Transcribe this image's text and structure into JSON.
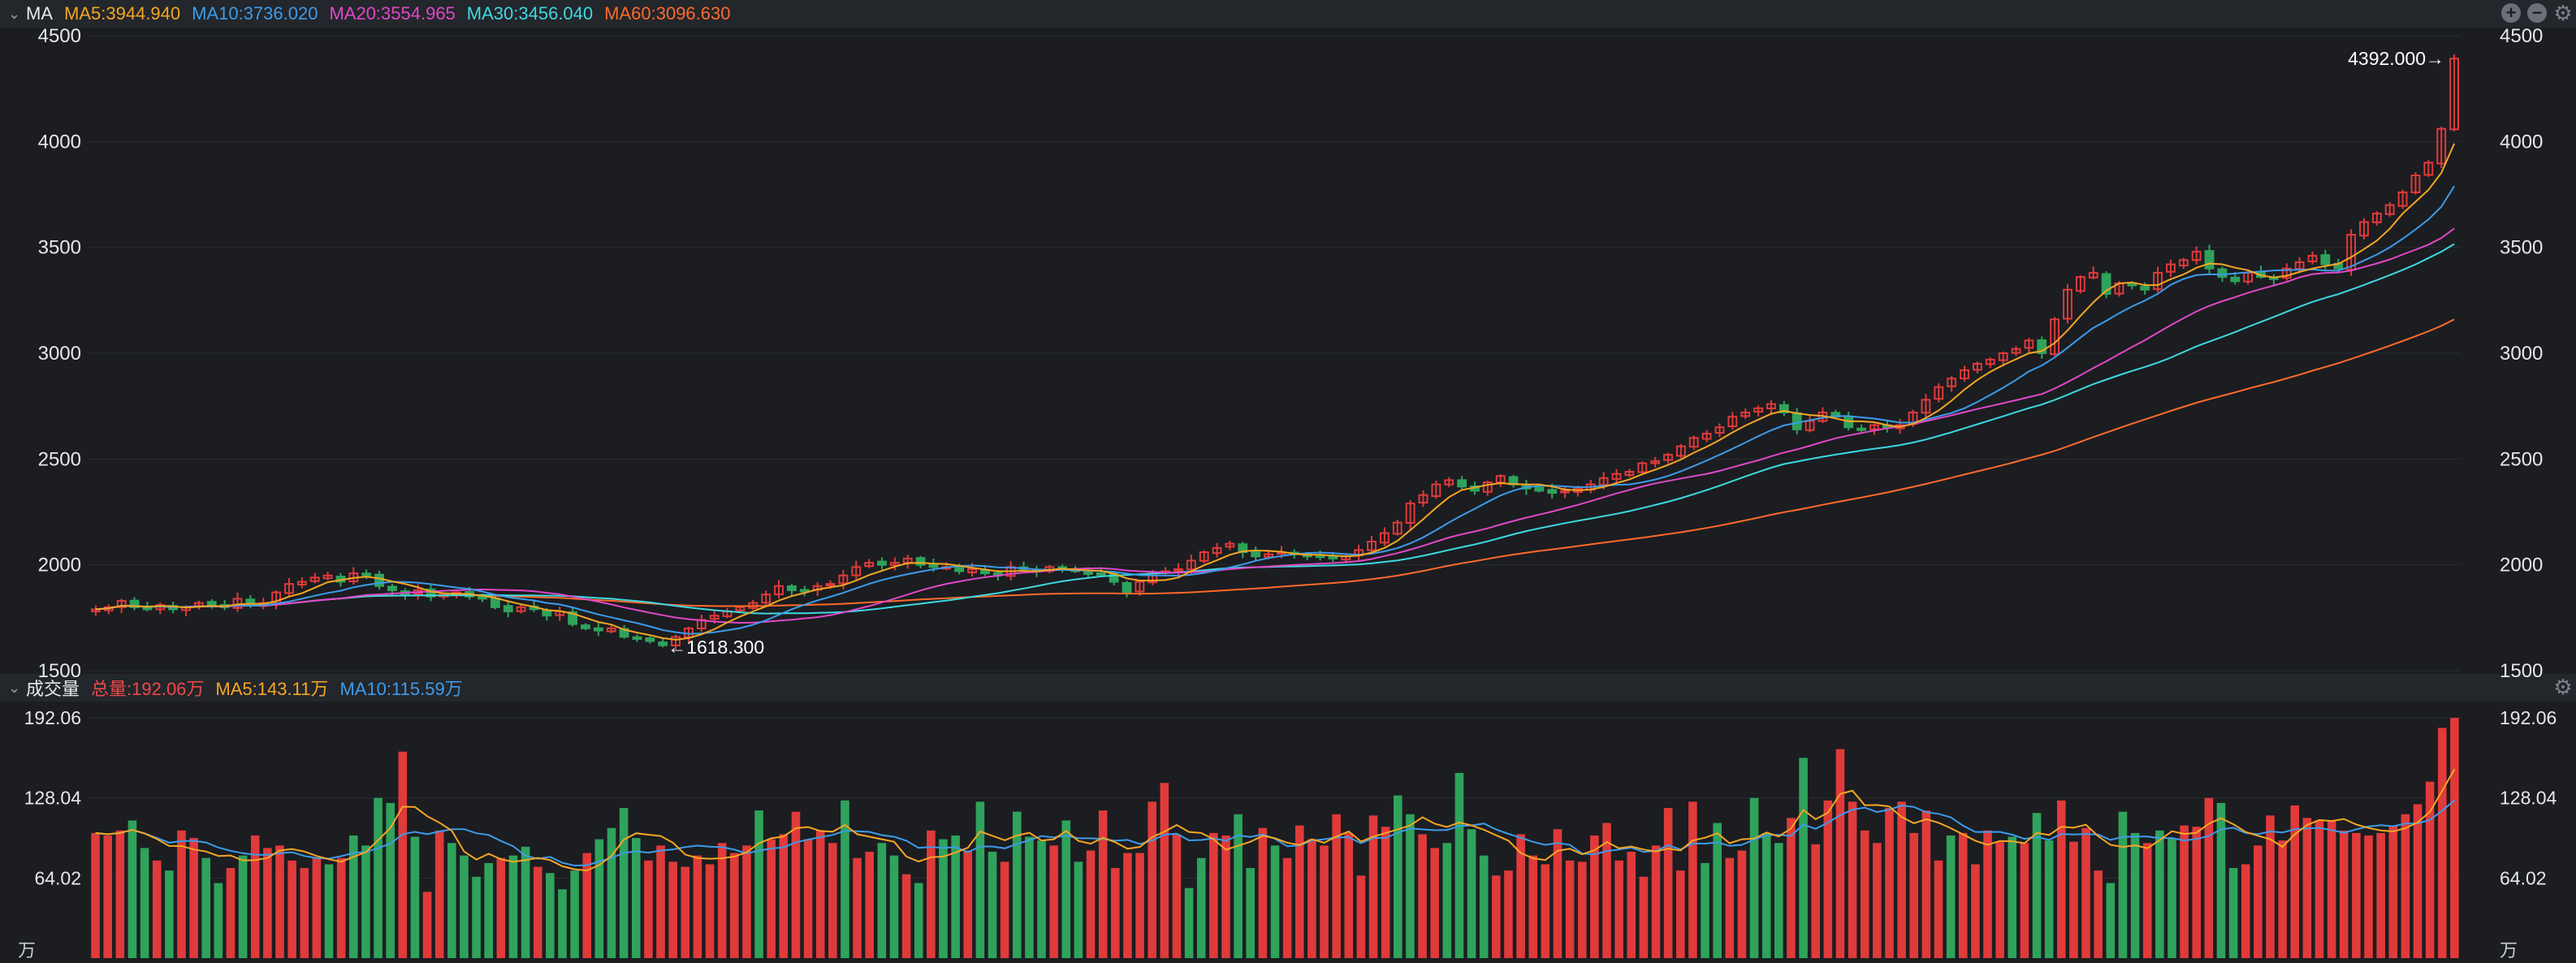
{
  "price_panel": {
    "name": "MA",
    "legend": [
      {
        "label": "MA5:3944.940",
        "color": "#f5a623"
      },
      {
        "label": "MA10:3736.020",
        "color": "#3d9be9"
      },
      {
        "label": "MA20:3554.965",
        "color": "#e048c8"
      },
      {
        "label": "MA30:3456.040",
        "color": "#3fd8e0"
      },
      {
        "label": "MA60:3096.630",
        "color": "#ff6a2b"
      }
    ],
    "icons": [
      "zoom-in-icon",
      "zoom-out-icon",
      "gear-icon"
    ],
    "y_ticks": [
      "4500",
      "4000",
      "3500",
      "3000",
      "2500",
      "2000",
      "1500"
    ],
    "high_label": "4392.000→",
    "low_label": "←1618.300"
  },
  "volume_panel": {
    "name": "成交量",
    "legend": [
      {
        "label": "总量:192.06万",
        "color": "#f04848"
      },
      {
        "label": "MA5:143.11万",
        "color": "#f5a623"
      },
      {
        "label": "MA10:115.59万",
        "color": "#3d9be9"
      }
    ],
    "y_ticks": [
      "192.06",
      "128.04",
      "64.02"
    ],
    "unit": "万"
  },
  "colors": {
    "up": "#e03a3a",
    "down": "#2fa35b",
    "grid": "#2a2d33",
    "bg": "#1b1d21"
  },
  "chart_data": [
    {
      "type": "candlestick",
      "title": "",
      "ylim": [
        1500,
        4500
      ],
      "close_series": [
        1790,
        1800,
        1830,
        1800,
        1790,
        1810,
        1790,
        1800,
        1820,
        1810,
        1800,
        1840,
        1810,
        1820,
        1870,
        1910,
        1920,
        1940,
        1950,
        1920,
        1960,
        1950,
        1900,
        1880,
        1860,
        1880,
        1850,
        1860,
        1870,
        1850,
        1840,
        1800,
        1780,
        1800,
        1790,
        1760,
        1780,
        1720,
        1700,
        1690,
        1700,
        1660,
        1650,
        1640,
        1620,
        1660,
        1700,
        1740,
        1760,
        1780,
        1800,
        1820,
        1860,
        1900,
        1880,
        1880,
        1900,
        1910,
        1950,
        1990,
        2010,
        2000,
        2010,
        2030,
        2000,
        1990,
        1990,
        1970,
        1980,
        1960,
        1950,
        1990,
        1980,
        1970,
        1990,
        1980,
        1970,
        1960,
        1960,
        1920,
        1870,
        1920,
        1960,
        1970,
        1980,
        2020,
        2060,
        2080,
        2100,
        2060,
        2040,
        2050,
        2060,
        2050,
        2040,
        2040,
        2030,
        2040,
        2070,
        2110,
        2150,
        2200,
        2290,
        2330,
        2380,
        2400,
        2370,
        2350,
        2390,
        2420,
        2380,
        2360,
        2350,
        2340,
        2350,
        2360,
        2380,
        2410,
        2430,
        2440,
        2480,
        2490,
        2520,
        2560,
        2600,
        2620,
        2650,
        2700,
        2720,
        2740,
        2760,
        2720,
        2640,
        2680,
        2720,
        2700,
        2650,
        2640,
        2660,
        2650,
        2660,
        2720,
        2780,
        2840,
        2880,
        2920,
        2950,
        2970,
        3000,
        3020,
        3060,
        3000,
        3160,
        3300,
        3360,
        3380,
        3280,
        3330,
        3320,
        3300,
        3380,
        3420,
        3440,
        3480,
        3400,
        3360,
        3340,
        3380,
        3360,
        3350,
        3400,
        3430,
        3460,
        3420,
        3400,
        3560,
        3620,
        3660,
        3700,
        3760,
        3840,
        3900,
        4060,
        4392
      ],
      "ma_series": [
        {
          "name": "MA5",
          "last": 3944.94
        },
        {
          "name": "MA10",
          "last": 3736.02
        },
        {
          "name": "MA20",
          "last": 3554.965
        },
        {
          "name": "MA30",
          "last": 3456.04
        },
        {
          "name": "MA60",
          "last": 3096.63
        }
      ],
      "annotations": [
        {
          "text": "4392.000",
          "value": 4392.0
        },
        {
          "text": "1618.300",
          "value": 1618.3
        }
      ]
    },
    {
      "type": "bar",
      "title": "",
      "unit": "万",
      "ylim": [
        0,
        192.06
      ],
      "values": [
        100,
        98,
        102,
        110,
        88,
        78,
        70,
        102,
        96,
        80,
        60,
        72,
        82,
        98,
        88,
        90,
        78,
        72,
        80,
        75,
        80,
        98,
        90,
        128,
        124,
        165,
        97,
        53,
        102,
        92,
        82,
        65,
        76,
        80,
        82,
        89,
        73,
        68,
        55,
        70,
        84,
        95,
        104,
        120,
        96,
        78,
        90,
        77,
        73,
        82,
        75,
        92,
        84,
        90,
        118,
        95,
        99,
        117,
        95,
        102,
        92,
        126,
        80,
        85,
        92,
        82,
        67,
        60,
        102,
        95,
        98,
        86,
        125,
        85,
        77,
        117,
        97,
        94,
        90,
        110,
        77,
        86,
        118,
        72,
        84,
        84,
        125,
        140,
        99,
        56,
        80,
        100,
        98,
        115,
        72,
        104,
        90,
        80,
        106,
        95,
        90,
        115,
        100,
        66,
        114,
        105,
        130,
        115,
        99,
        88,
        92,
        148,
        103,
        82,
        66,
        70,
        99,
        82,
        75,
        103,
        78,
        77,
        98,
        108,
        78,
        85,
        65,
        90,
        120,
        70,
        125,
        76,
        108,
        80,
        86,
        128,
        100,
        92,
        112,
        160,
        91,
        126,
        167,
        125,
        102,
        92,
        120,
        125,
        100,
        118,
        78,
        98,
        100,
        75,
        102,
        93,
        97,
        92,
        116,
        94,
        126,
        93,
        104,
        70,
        60,
        117,
        100,
        92,
        102,
        96,
        106,
        105,
        128,
        124,
        72,
        75,
        90,
        114,
        94,
        122,
        112,
        110,
        110,
        102,
        100,
        98,
        100,
        106,
        115,
        123,
        141,
        184,
        192
      ],
      "series": [
        {
          "name": "MA5",
          "last": 143.11
        },
        {
          "name": "MA10",
          "last": 115.59
        }
      ],
      "total_last": 192.06
    }
  ]
}
